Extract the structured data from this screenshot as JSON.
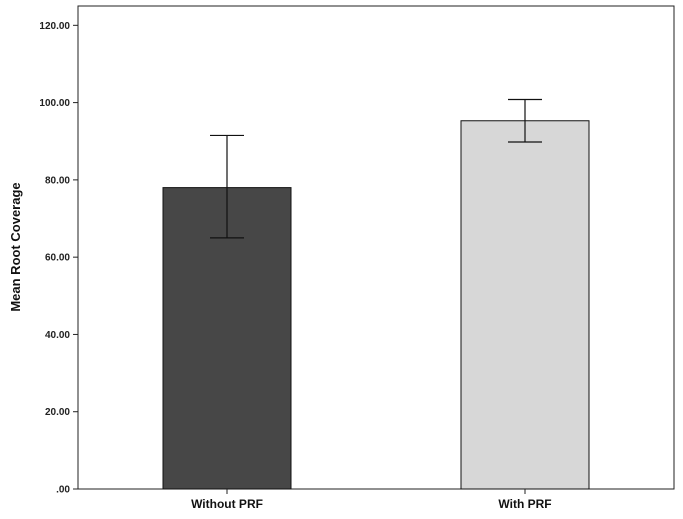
{
  "chart_data": {
    "type": "bar",
    "title": "",
    "xlabel": "",
    "ylabel": "Mean Root Coverage",
    "ylim": [
      0,
      125
    ],
    "yticks": [
      0,
      20,
      40,
      60,
      80,
      100,
      120
    ],
    "ytick_labels": [
      ".00",
      "20.00",
      "40.00",
      "60.00",
      "80.00",
      "100.00",
      "120.00"
    ],
    "categories": [
      "Without PRF",
      "With PRF"
    ],
    "values": [
      78.0,
      95.3
    ],
    "error_low": [
      65.0,
      89.8
    ],
    "error_high": [
      91.5,
      100.8
    ],
    "bar_colors": [
      "#474747",
      "#d7d7d7"
    ],
    "grid": false,
    "legend": "none"
  }
}
